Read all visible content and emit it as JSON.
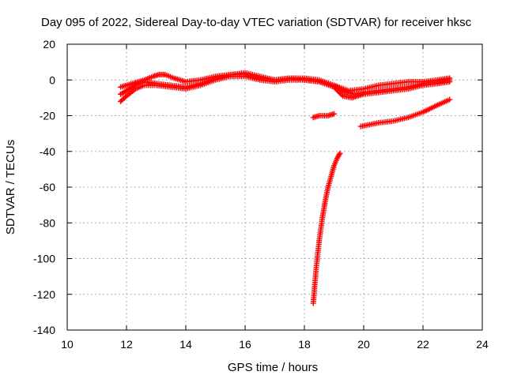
{
  "chart_data": {
    "type": "scatter",
    "title": "Day 095 of 2022, Sidereal Day-to-day VTEC variation (SDTVAR) for receiver hksc",
    "xlabel": "GPS time / hours",
    "ylabel": "SDTVAR / TECUs",
    "xlim": [
      10,
      24
    ],
    "ylim": [
      -140,
      20
    ],
    "xticks": [
      10,
      12,
      14,
      16,
      18,
      20,
      22,
      24
    ],
    "yticks": [
      20,
      0,
      -20,
      -40,
      -60,
      -80,
      -100,
      -120,
      -140
    ],
    "grid": true,
    "marker": "+",
    "color": "#ff0000",
    "series": [
      {
        "name": "track-upper",
        "points": [
          [
            11.8,
            -4
          ],
          [
            12.2,
            -2
          ],
          [
            12.6,
            0
          ],
          [
            12.9,
            2
          ],
          [
            13.1,
            3
          ],
          [
            13.3,
            3
          ],
          [
            13.6,
            1
          ],
          [
            14.0,
            -1
          ],
          [
            14.5,
            0
          ],
          [
            15.0,
            2
          ],
          [
            15.5,
            3
          ],
          [
            16.0,
            4
          ],
          [
            16.5,
            2
          ],
          [
            17.0,
            0
          ],
          [
            17.5,
            1
          ],
          [
            18.0,
            1
          ],
          [
            18.5,
            0
          ],
          [
            19.0,
            -3
          ],
          [
            19.5,
            -6
          ],
          [
            20.0,
            -5
          ],
          [
            20.5,
            -3
          ],
          [
            21.0,
            -2
          ],
          [
            21.5,
            -1
          ],
          [
            22.0,
            -1
          ],
          [
            22.5,
            0
          ],
          [
            22.9,
            1
          ]
        ]
      },
      {
        "name": "track-middle",
        "points": [
          [
            11.8,
            -8
          ],
          [
            12.0,
            -6
          ],
          [
            12.3,
            -3
          ],
          [
            12.6,
            -1
          ],
          [
            13.0,
            -2
          ],
          [
            13.5,
            -3
          ],
          [
            14.0,
            -4
          ],
          [
            14.5,
            -2
          ],
          [
            15.0,
            1
          ],
          [
            15.5,
            3
          ],
          [
            16.0,
            3
          ],
          [
            16.5,
            1
          ],
          [
            17.0,
            0
          ],
          [
            17.5,
            1
          ],
          [
            18.0,
            0
          ],
          [
            18.5,
            -1
          ],
          [
            19.0,
            -3
          ],
          [
            19.4,
            -7
          ],
          [
            19.7,
            -8
          ],
          [
            20.0,
            -7
          ],
          [
            20.5,
            -6
          ],
          [
            21.0,
            -5
          ],
          [
            21.5,
            -4
          ],
          [
            22.0,
            -2
          ],
          [
            22.5,
            -1
          ],
          [
            22.9,
            0
          ]
        ]
      },
      {
        "name": "track-lower",
        "points": [
          [
            11.8,
            -12
          ],
          [
            12.0,
            -9
          ],
          [
            12.3,
            -5
          ],
          [
            12.6,
            -3
          ],
          [
            13.0,
            -3
          ],
          [
            13.5,
            -4
          ],
          [
            14.0,
            -5
          ],
          [
            14.5,
            -3
          ],
          [
            15.0,
            0
          ],
          [
            15.5,
            2
          ],
          [
            16.0,
            2
          ],
          [
            16.5,
            0
          ],
          [
            17.0,
            -1
          ],
          [
            17.5,
            0
          ],
          [
            18.0,
            0
          ],
          [
            18.5,
            -1
          ],
          [
            19.0,
            -4
          ],
          [
            19.3,
            -9
          ],
          [
            19.6,
            -10
          ],
          [
            20.0,
            -8
          ],
          [
            20.5,
            -7
          ],
          [
            21.0,
            -6
          ],
          [
            21.5,
            -5
          ],
          [
            22.0,
            -3
          ],
          [
            22.5,
            -2
          ],
          [
            22.9,
            -1
          ]
        ]
      },
      {
        "name": "offset-segment",
        "points": [
          [
            18.3,
            -21
          ],
          [
            18.5,
            -20
          ],
          [
            18.8,
            -20
          ],
          [
            19.0,
            -19
          ]
        ]
      },
      {
        "name": "drop-segment",
        "points": [
          [
            18.3,
            -125
          ],
          [
            18.4,
            -105
          ],
          [
            18.5,
            -90
          ],
          [
            18.6,
            -78
          ],
          [
            18.7,
            -68
          ],
          [
            18.8,
            -60
          ],
          [
            18.9,
            -54
          ],
          [
            19.0,
            -48
          ],
          [
            19.1,
            -44
          ],
          [
            19.2,
            -41
          ]
        ]
      },
      {
        "name": "recovery-segment",
        "points": [
          [
            19.9,
            -26
          ],
          [
            20.5,
            -24
          ],
          [
            21.0,
            -23
          ],
          [
            21.5,
            -21
          ],
          [
            22.0,
            -18
          ],
          [
            22.5,
            -14
          ],
          [
            22.9,
            -11
          ]
        ]
      }
    ]
  }
}
